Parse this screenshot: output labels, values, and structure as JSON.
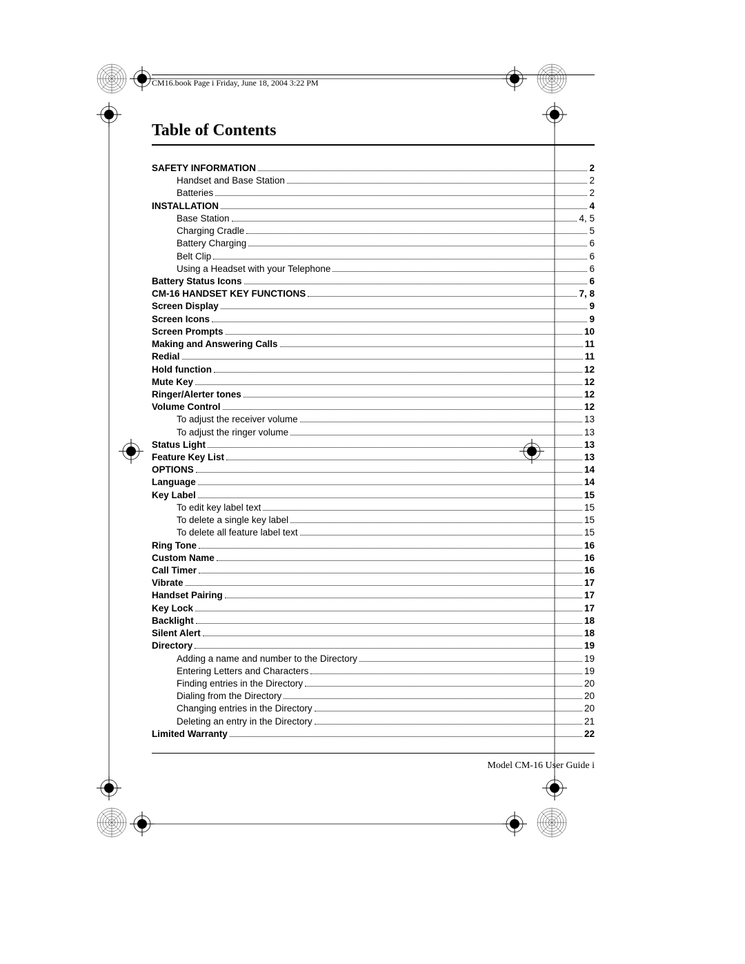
{
  "header": {
    "running_head": "CM16.book  Page i  Friday, June 18, 2004  3:22 PM"
  },
  "title": "Table of Contents",
  "footer": {
    "text": "Model CM-16 User Guide   i"
  },
  "toc": [
    {
      "label": "SAFETY INFORMATION",
      "page": "2",
      "bold": true,
      "sub": false,
      "space": true
    },
    {
      "label": "Handset and Base Station",
      "page": "2",
      "bold": false,
      "sub": true,
      "space": true
    },
    {
      "label": "Batteries",
      "page": "2",
      "bold": false,
      "sub": true,
      "space": false
    },
    {
      "label": "INSTALLATION",
      "page": "4",
      "bold": true,
      "sub": false,
      "space": true
    },
    {
      "label": "Base Station",
      "page": "4, 5",
      "bold": false,
      "sub": true,
      "space": true
    },
    {
      "label": "Charging Cradle",
      "page": "5",
      "bold": false,
      "sub": true,
      "space": true
    },
    {
      "label": "Battery Charging",
      "page": "6",
      "bold": false,
      "sub": true,
      "space": true
    },
    {
      "label": "Belt Clip",
      "page": "6",
      "bold": false,
      "sub": true,
      "space": false
    },
    {
      "label": "Using a Headset with your Telephone",
      "page": "6",
      "bold": false,
      "sub": true,
      "space": false
    },
    {
      "label": "Battery Status Icons",
      "page": "6",
      "bold": true,
      "sub": false,
      "space": true
    },
    {
      "label": "CM-16 HANDSET KEY FUNCTIONS",
      "page": "7, 8",
      "bold": true,
      "sub": false,
      "space": true
    },
    {
      "label": "Screen Display",
      "page": "9",
      "bold": true,
      "sub": false,
      "space": true
    },
    {
      "label": "Screen Icons",
      "page": "9",
      "bold": true,
      "sub": false,
      "space": true
    },
    {
      "label": "Screen Prompts",
      "page": "10",
      "bold": true,
      "sub": false,
      "space": true
    },
    {
      "label": "Making and Answering Calls",
      "page": "11",
      "bold": true,
      "sub": false,
      "space": true
    },
    {
      "label": "Redial",
      "page": " 11",
      "bold": true,
      "sub": false,
      "space": true
    },
    {
      "label": "Hold function",
      "page": "12",
      "bold": true,
      "sub": false,
      "space": true
    },
    {
      "label": "Mute Key",
      "page": "12",
      "bold": true,
      "sub": false,
      "space": true
    },
    {
      "label": "Ringer/Alerter tones",
      "page": "12",
      "bold": true,
      "sub": false,
      "space": true
    },
    {
      "label": "Volume Control",
      "page": "12",
      "bold": true,
      "sub": false,
      "space": true
    },
    {
      "label": "To adjust the receiver volume",
      "page": " 13",
      "bold": false,
      "sub": true,
      "space": true
    },
    {
      "label": "To adjust the ringer volume",
      "page": " 13",
      "bold": false,
      "sub": true,
      "space": true
    },
    {
      "label": "Status Light",
      "page": "13",
      "bold": true,
      "sub": false,
      "space": true
    },
    {
      "label": "Feature Key List",
      "page": " 13",
      "bold": true,
      "sub": false,
      "space": true
    },
    {
      "label": "OPTIONS",
      "page": "14",
      "bold": true,
      "sub": false,
      "space": true
    },
    {
      "label": "Language",
      "page": "14",
      "bold": true,
      "sub": false,
      "space": true
    },
    {
      "label": "Key Label",
      "page": "15",
      "bold": true,
      "sub": false,
      "space": true
    },
    {
      "label": "To edit key label text",
      "page": " 15",
      "bold": false,
      "sub": true,
      "space": true
    },
    {
      "label": "To delete a single key label",
      "page": " 15",
      "bold": false,
      "sub": true,
      "space": true
    },
    {
      "label": "To delete all feature label text",
      "page": " 15",
      "bold": false,
      "sub": true,
      "space": true
    },
    {
      "label": "Ring Tone",
      "page": "16",
      "bold": true,
      "sub": false,
      "space": true
    },
    {
      "label": "Custom Name",
      "page": "16",
      "bold": true,
      "sub": false,
      "space": true
    },
    {
      "label": "Call Timer",
      "page": " 16",
      "bold": true,
      "sub": false,
      "space": true
    },
    {
      "label": "Vibrate",
      "page": "17",
      "bold": true,
      "sub": false,
      "space": true
    },
    {
      "label": "Handset Pairing",
      "page": "17",
      "bold": true,
      "sub": false,
      "space": true
    },
    {
      "label": "Key Lock",
      "page": "17",
      "bold": true,
      "sub": false,
      "space": true
    },
    {
      "label": "Backlight",
      "page": "18",
      "bold": true,
      "sub": false,
      "space": true
    },
    {
      "label": "Silent Alert",
      "page": " 18",
      "bold": true,
      "sub": false,
      "space": false
    },
    {
      "label": "Directory",
      "page": "19",
      "bold": true,
      "sub": false,
      "space": true
    },
    {
      "label": "Adding a name and number to the Directory",
      "page": " 19",
      "bold": false,
      "sub": true,
      "space": true
    },
    {
      "label": "Entering Letters and Characters",
      "page": " 19",
      "bold": false,
      "sub": true,
      "space": true
    },
    {
      "label": "Finding entries in the Directory",
      "page": " 20",
      "bold": false,
      "sub": true,
      "space": true
    },
    {
      "label": "Dialing from the Directory",
      "page": " 20",
      "bold": false,
      "sub": true,
      "space": true
    },
    {
      "label": "Changing entries in the Directory",
      "page": " 20",
      "bold": false,
      "sub": true,
      "space": true
    },
    {
      "label": "Deleting an entry in the Directory",
      "page": " 21",
      "bold": false,
      "sub": true,
      "space": true
    },
    {
      "label": "Limited Warranty",
      "page": "22",
      "bold": true,
      "sub": false,
      "space": true
    }
  ],
  "marks": {
    "guilloche_color": "#3a3a3a",
    "line_color": "#000000"
  }
}
